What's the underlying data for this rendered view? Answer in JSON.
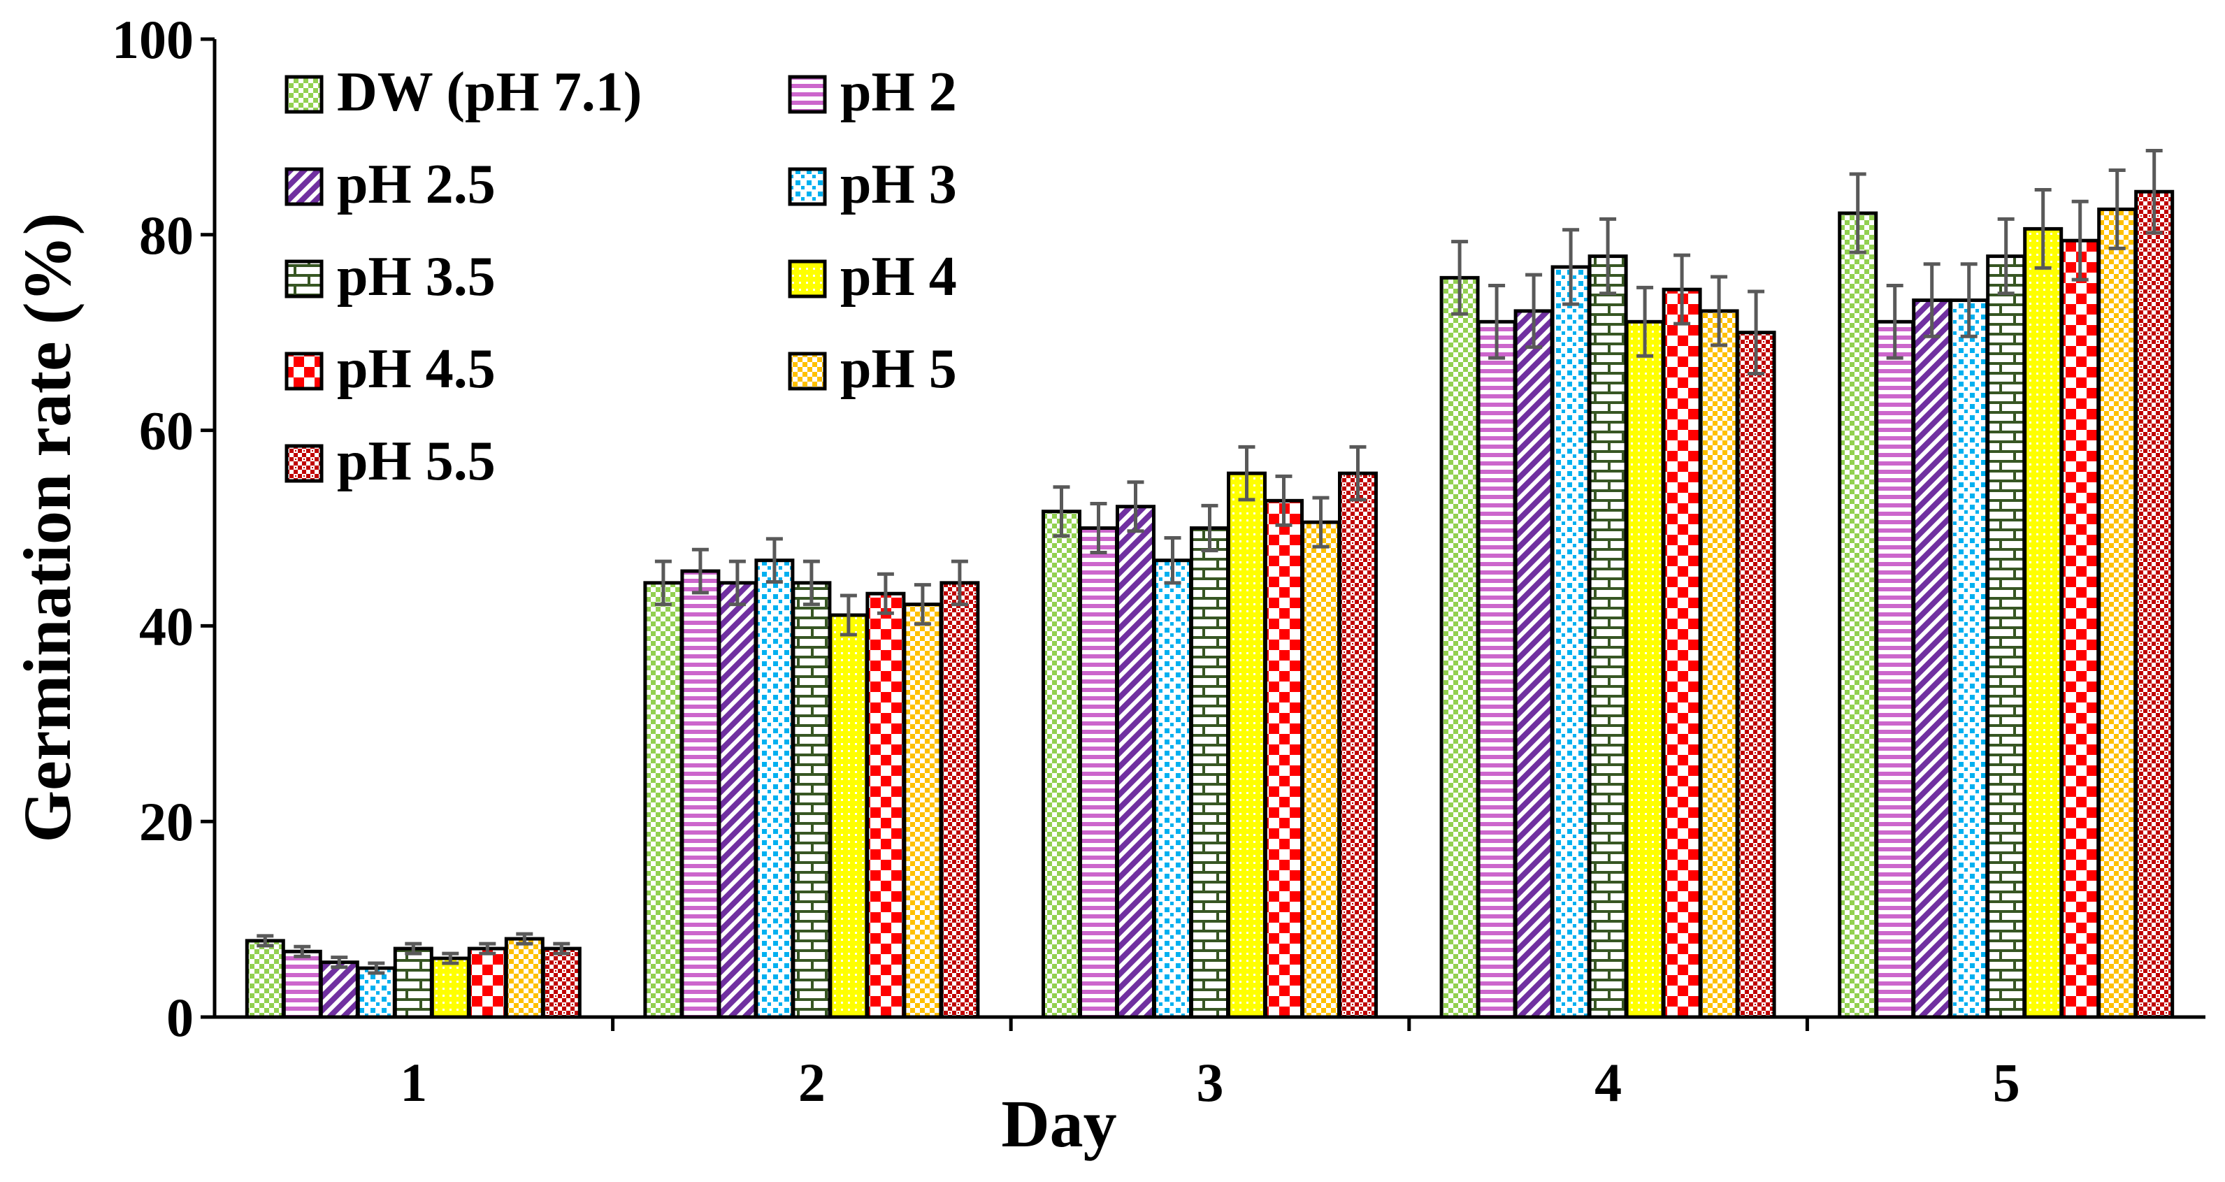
{
  "chart_data": {
    "type": "bar",
    "title": "",
    "xlabel": "Day",
    "ylabel": "Germination rate (%)",
    "ylim": [
      0,
      100
    ],
    "yticks": [
      0,
      20,
      40,
      60,
      80,
      100
    ],
    "categories": [
      "1",
      "2",
      "3",
      "4",
      "5"
    ],
    "series": [
      {
        "name": "DW (pH 7.1)",
        "color": "#92d050",
        "pattern": "checker-small",
        "values": [
          7.8,
          44.4,
          51.7,
          75.6,
          82.2
        ],
        "errors": [
          0.5,
          2.2,
          2.5,
          3.7,
          4.0
        ]
      },
      {
        "name": "pH 2",
        "color": "#cc66cc",
        "pattern": "hlines",
        "values": [
          6.7,
          45.6,
          50.0,
          71.1,
          71.1
        ],
        "errors": [
          0.5,
          2.2,
          2.5,
          3.7,
          3.7
        ]
      },
      {
        "name": "pH 2.5",
        "color": "#7030a0",
        "pattern": "diag",
        "values": [
          5.6,
          44.4,
          52.2,
          72.2,
          73.3
        ],
        "errors": [
          0.5,
          2.2,
          2.5,
          3.7,
          3.7
        ]
      },
      {
        "name": "pH 3",
        "color": "#00b0f0",
        "pattern": "dots",
        "values": [
          5.0,
          46.7,
          46.7,
          76.7,
          73.3
        ],
        "errors": [
          0.5,
          2.2,
          2.3,
          3.8,
          3.7
        ]
      },
      {
        "name": "pH 3.5",
        "color": "#375623",
        "pattern": "brick",
        "values": [
          7.0,
          44.4,
          50.0,
          77.8,
          77.8
        ],
        "errors": [
          0.5,
          2.2,
          2.3,
          3.8,
          3.8
        ]
      },
      {
        "name": "pH 4",
        "color": "#ffff00",
        "pattern": "dots-dense",
        "values": [
          6.0,
          41.1,
          55.6,
          71.1,
          80.6
        ],
        "errors": [
          0.5,
          2.0,
          2.7,
          3.5,
          4.0
        ]
      },
      {
        "name": "pH 4.5",
        "color": "#ff0000",
        "pattern": "checker-large",
        "values": [
          7.0,
          43.3,
          52.8,
          74.4,
          79.4
        ],
        "errors": [
          0.5,
          2.0,
          2.5,
          3.5,
          4.0
        ]
      },
      {
        "name": "pH 5",
        "color": "#ffc000",
        "pattern": "checker-small",
        "values": [
          8.0,
          42.2,
          50.6,
          72.2,
          82.6
        ],
        "errors": [
          0.5,
          2.0,
          2.5,
          3.5,
          4.0
        ]
      },
      {
        "name": "pH 5.5",
        "color": "#c00000",
        "pattern": "grid-dots",
        "values": [
          7.0,
          44.4,
          55.6,
          70.0,
          84.4
        ],
        "errors": [
          0.5,
          2.2,
          2.7,
          4.2,
          4.2
        ]
      }
    ],
    "legend": "top-left, 2 columns",
    "grid": false
  }
}
